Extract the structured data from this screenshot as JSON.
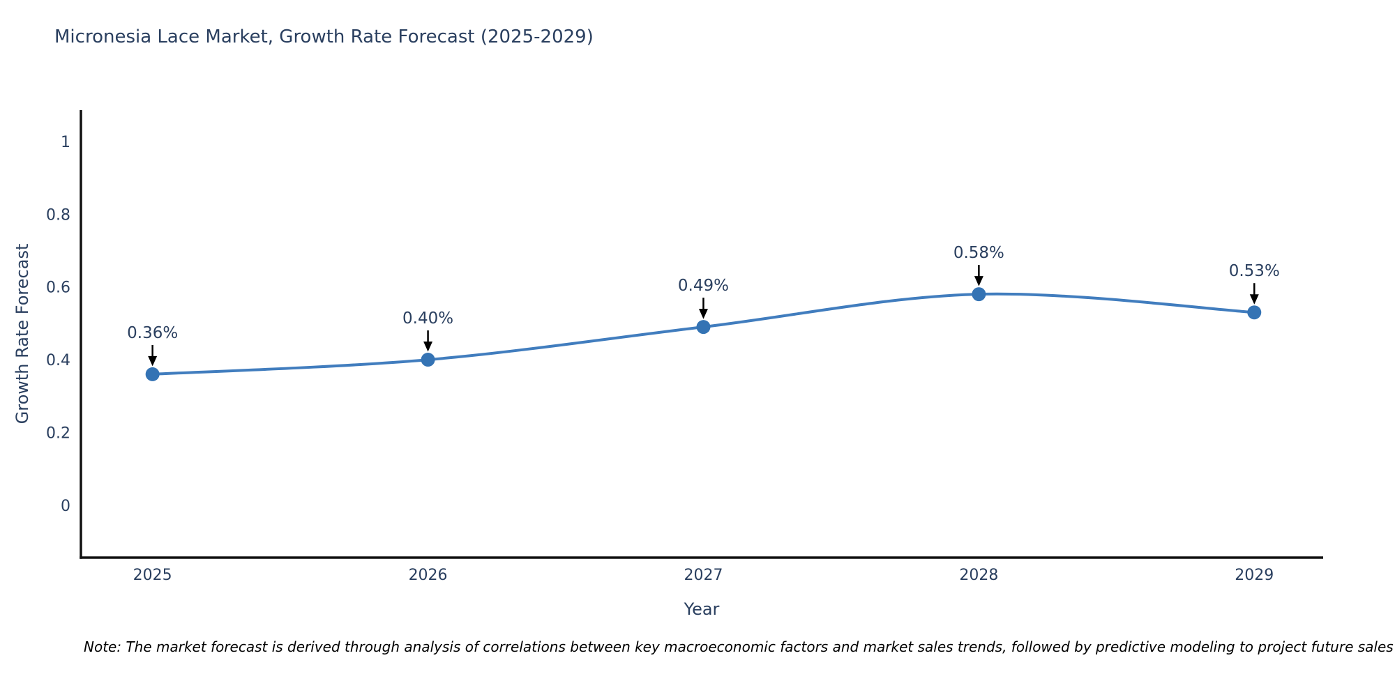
{
  "chart_data": {
    "type": "line",
    "title": "Micronesia Lace Market, Growth Rate Forecast (2025-2029)",
    "xlabel": "Year",
    "ylabel": "Growth Rate Forecast",
    "categories": [
      2025,
      2026,
      2027,
      2028,
      2029
    ],
    "series": [
      {
        "name": "Growth Rate Forecast",
        "values": [
          0.36,
          0.4,
          0.49,
          0.58,
          0.53
        ]
      }
    ],
    "point_labels": [
      "0.36%",
      "0.40%",
      "0.49%",
      "0.58%",
      "0.53%"
    ],
    "xlim": [
      2024.74,
      2029.25
    ],
    "ylim": [
      -0.144,
      1.086
    ],
    "yticks": [
      0,
      0.2,
      0.4,
      0.6,
      0.8,
      1
    ],
    "ytick_labels": [
      "0",
      "0.2",
      "0.4",
      "0.6",
      "0.8",
      "1"
    ],
    "xtick_labels": [
      "2025",
      "2026",
      "2027",
      "2028",
      "2029"
    ],
    "grid": false,
    "legend": "none",
    "line_shape": "spline",
    "marker": "circle",
    "annotation_arrows": true,
    "colors": {
      "line": "#417dbe",
      "marker": "#3473b4",
      "axis": "#111111",
      "arrow": "#000000",
      "text": "#2a3f5f",
      "note": "#000000"
    }
  },
  "note": {
    "text": "Note: The market forecast is derived through analysis of correlations between key macroeconomic factors and market sales trends, followed by predictive modeling to project future sales"
  }
}
